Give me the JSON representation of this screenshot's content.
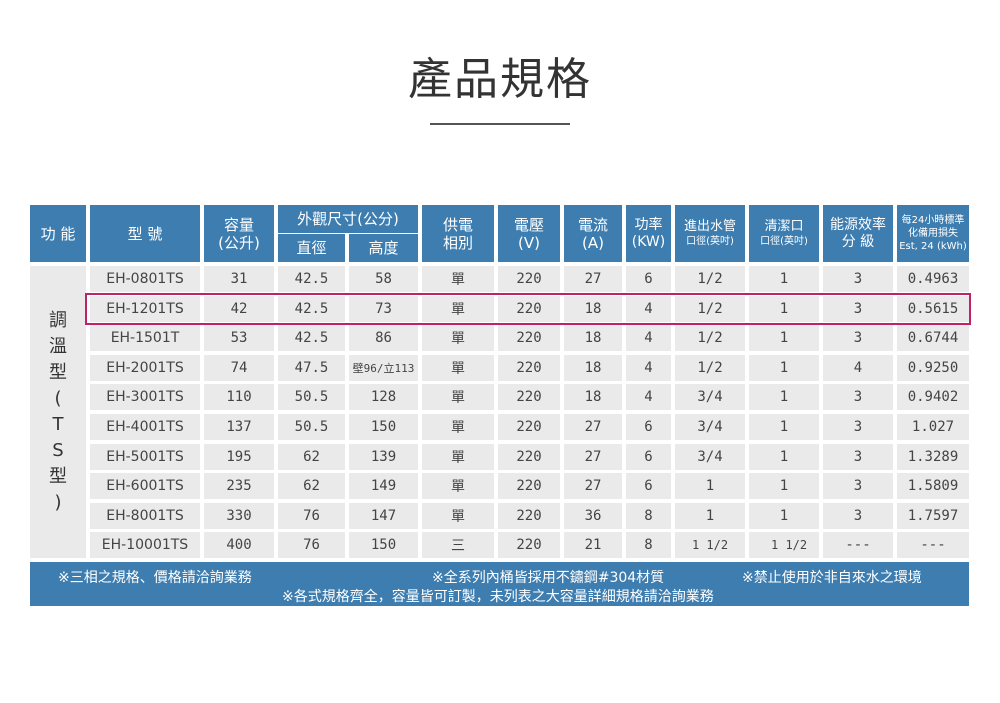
{
  "title": "產品規格",
  "header": {
    "function": "功 能",
    "model": "型 號",
    "capacity": "容量",
    "capacity_unit": "(公升)",
    "dimensions": "外觀尺寸(公分)",
    "diameter": "直徑",
    "height": "高度",
    "power_supply": "供電",
    "power_phase": "相別",
    "voltage": "電壓",
    "voltage_unit": "(V)",
    "current": "電流",
    "current_unit": "(A)",
    "power": "功率",
    "power_unit": "(KW)",
    "inlet": "進出水管",
    "inlet_sub": "口徑(英吋)",
    "cleanout": "清潔口",
    "cleanout_sub": "口徑(英吋)",
    "efficiency": "能源效率",
    "efficiency_sub": "分   級",
    "loss1": "每24小時標準",
    "loss2": "化備用損失",
    "loss3": "Est, 24 (kWh)"
  },
  "category": [
    "調",
    "溫",
    "型",
    "(",
    "T",
    "S",
    "型",
    ")"
  ],
  "rows": [
    {
      "model": "EH-0801TS",
      "capacity": "31",
      "diameter": "42.5",
      "height": "58",
      "phase": "單",
      "voltage": "220",
      "current": "27",
      "power": "6",
      "inlet": "1/2",
      "clean": "1",
      "grade": "3",
      "loss": "0.4963"
    },
    {
      "model": "EH-1201TS",
      "capacity": "42",
      "diameter": "42.5",
      "height": "73",
      "phase": "單",
      "voltage": "220",
      "current": "18",
      "power": "4",
      "inlet": "1/2",
      "clean": "1",
      "grade": "3",
      "loss": "0.5615"
    },
    {
      "model": "EH-1501T",
      "capacity": "53",
      "diameter": "42.5",
      "height": "86",
      "phase": "單",
      "voltage": "220",
      "current": "18",
      "power": "4",
      "inlet": "1/2",
      "clean": "1",
      "grade": "3",
      "loss": "0.6744"
    },
    {
      "model": "EH-2001TS",
      "capacity": "74",
      "diameter": "47.5",
      "height": "壁96/立113",
      "phase": "單",
      "voltage": "220",
      "current": "18",
      "power": "4",
      "inlet": "1/2",
      "clean": "1",
      "grade": "4",
      "loss": "0.9250"
    },
    {
      "model": "EH-3001TS",
      "capacity": "110",
      "diameter": "50.5",
      "height": "128",
      "phase": "單",
      "voltage": "220",
      "current": "18",
      "power": "4",
      "inlet": "3/4",
      "clean": "1",
      "grade": "3",
      "loss": "0.9402"
    },
    {
      "model": "EH-4001TS",
      "capacity": "137",
      "diameter": "50.5",
      "height": "150",
      "phase": "單",
      "voltage": "220",
      "current": "27",
      "power": "6",
      "inlet": "3/4",
      "clean": "1",
      "grade": "3",
      "loss": "1.027"
    },
    {
      "model": "EH-5001TS",
      "capacity": "195",
      "diameter": "62",
      "height": "139",
      "phase": "單",
      "voltage": "220",
      "current": "27",
      "power": "6",
      "inlet": "3/4",
      "clean": "1",
      "grade": "3",
      "loss": "1.3289"
    },
    {
      "model": "EH-6001TS",
      "capacity": "235",
      "diameter": "62",
      "height": "149",
      "phase": "單",
      "voltage": "220",
      "current": "27",
      "power": "6",
      "inlet": "1",
      "clean": "1",
      "grade": "3",
      "loss": "1.5809"
    },
    {
      "model": "EH-8001TS",
      "capacity": "330",
      "diameter": "76",
      "height": "147",
      "phase": "單",
      "voltage": "220",
      "current": "36",
      "power": "8",
      "inlet": "1",
      "clean": "1",
      "grade": "3",
      "loss": "1.7597"
    },
    {
      "model": "EH-10001TS",
      "capacity": "400",
      "diameter": "76",
      "height": "150",
      "phase": "三",
      "voltage": "220",
      "current": "21",
      "power": "8",
      "inlet": "1 1/2",
      "clean": "1 1/2",
      "grade": "---",
      "loss": "---"
    }
  ],
  "notes": {
    "note1": "※三相之規格、價格請洽詢業務",
    "note2": "※全系列內桶皆採用不鏽鋼#304材質",
    "note3": "※禁止使用於非自來水之環境",
    "note4": "※各式規格齊全，容量皆可訂製，未列表之大容量詳細規格請洽詢業務"
  },
  "colors": {
    "header": "#3d7db0",
    "cell": "#eaeaea",
    "highlight": "#c0226a"
  }
}
